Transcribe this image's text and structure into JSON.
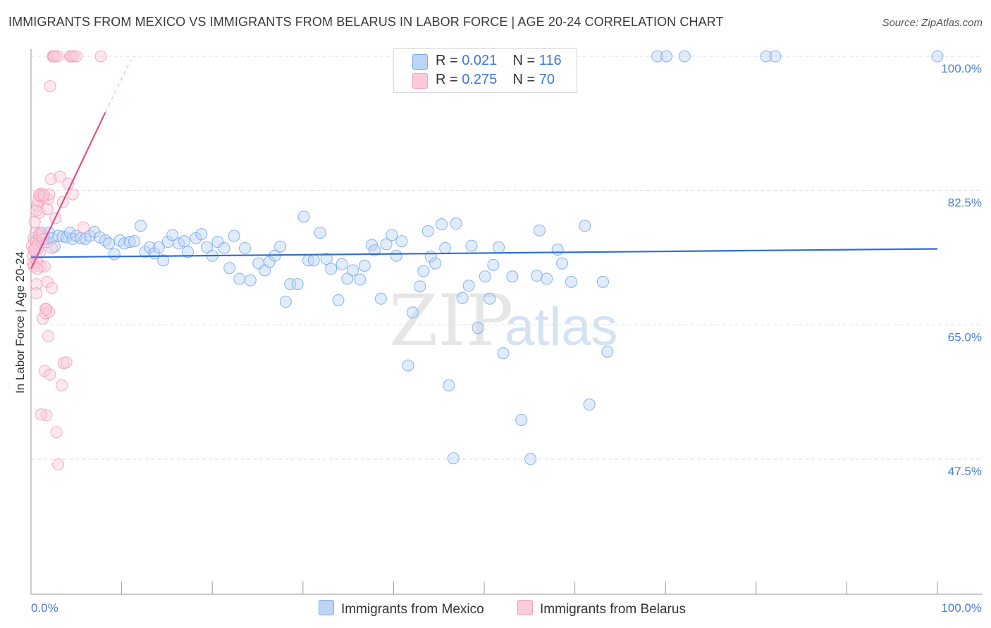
{
  "title": "IMMIGRANTS FROM MEXICO VS IMMIGRANTS FROM BELARUS IN LABOR FORCE | AGE 20-24 CORRELATION CHART",
  "source": "Source: ZipAtlas.com",
  "watermark": {
    "zip": "ZIP",
    "atlas": "atlas"
  },
  "legend": {
    "rows": [
      {
        "r_label": "R = ",
        "r_value": "0.021",
        "n_label": "N = ",
        "n_value": "116"
      },
      {
        "r_label": "R = ",
        "r_value": "0.275",
        "n_label": "N = ",
        "n_value": "70"
      }
    ]
  },
  "chart_data": {
    "type": "scatter",
    "title": "IMMIGRANTS FROM MEXICO VS IMMIGRANTS FROM BELARUS IN LABOR FORCE | AGE 20-24 CORRELATION CHART",
    "xlabel": "",
    "ylabel": "In Labor Force | Age 20-24",
    "xlim": [
      0,
      100
    ],
    "ylim": [
      30,
      101
    ],
    "x_tick_labels": [
      "0.0%",
      "100.0%"
    ],
    "y_ticks": [
      47.5,
      65.0,
      82.5,
      100.0
    ],
    "y_tick_labels": [
      "47.5%",
      "65.0%",
      "82.5%",
      "100.0%"
    ],
    "grid": true,
    "colors": {
      "mexico": "#7aaaf0",
      "mexico_line": "#2e6fd0",
      "belarus": "#f4a0bc",
      "belarus_line": "#e0508a"
    },
    "series": [
      {
        "name": "Immigrants from Mexico",
        "r": 0.021,
        "n": 116,
        "trend": {
          "x0": 0,
          "y0": 73.8,
          "x1": 100,
          "y1": 74.9
        },
        "points": [
          [
            0.5,
            76.0
          ],
          [
            0.8,
            75.0
          ],
          [
            1.0,
            77.0
          ],
          [
            1.2,
            76.5
          ],
          [
            1.5,
            76.2
          ],
          [
            1.8,
            75.8
          ],
          [
            2.0,
            77.0
          ],
          [
            2.3,
            76.3
          ],
          [
            2.6,
            75.2
          ],
          [
            3.0,
            76.6
          ],
          [
            3.5,
            76.5
          ],
          [
            3.9,
            76.4
          ],
          [
            4.3,
            77.0
          ],
          [
            4.6,
            76.2
          ],
          [
            5.0,
            76.6
          ],
          [
            5.5,
            76.3
          ],
          [
            6.0,
            76.2
          ],
          [
            6.5,
            76.6
          ],
          [
            7.0,
            77.1
          ],
          [
            7.6,
            76.4
          ],
          [
            8.2,
            76.0
          ],
          [
            8.6,
            75.6
          ],
          [
            9.2,
            74.2
          ],
          [
            9.8,
            76.0
          ],
          [
            10.3,
            75.6
          ],
          [
            10.9,
            75.8
          ],
          [
            11.4,
            75.9
          ],
          [
            12.1,
            77.9
          ],
          [
            12.6,
            74.5
          ],
          [
            13.1,
            75.1
          ],
          [
            13.6,
            74.3
          ],
          [
            14.1,
            75.1
          ],
          [
            14.6,
            73.4
          ],
          [
            15.1,
            75.8
          ],
          [
            15.6,
            76.7
          ],
          [
            16.3,
            75.6
          ],
          [
            16.9,
            75.9
          ],
          [
            17.3,
            74.5
          ],
          [
            18.2,
            76.3
          ],
          [
            18.8,
            76.8
          ],
          [
            19.4,
            75.1
          ],
          [
            20.0,
            74.0
          ],
          [
            20.6,
            75.8
          ],
          [
            21.3,
            75.0
          ],
          [
            21.9,
            72.4
          ],
          [
            22.4,
            76.6
          ],
          [
            23.0,
            71.0
          ],
          [
            23.6,
            75.0
          ],
          [
            24.2,
            70.8
          ],
          [
            25.1,
            73.0
          ],
          [
            25.8,
            72.1
          ],
          [
            26.3,
            73.2
          ],
          [
            26.9,
            74.0
          ],
          [
            27.5,
            75.2
          ],
          [
            28.1,
            68.0
          ],
          [
            28.6,
            70.3
          ],
          [
            29.4,
            70.3
          ],
          [
            30.1,
            79.1
          ],
          [
            30.6,
            73.4
          ],
          [
            31.2,
            73.4
          ],
          [
            31.9,
            77.0
          ],
          [
            32.6,
            73.6
          ],
          [
            33.1,
            72.3
          ],
          [
            33.9,
            68.2
          ],
          [
            34.3,
            72.9
          ],
          [
            34.9,
            71.0
          ],
          [
            35.5,
            72.1
          ],
          [
            36.3,
            70.9
          ],
          [
            36.8,
            72.7
          ],
          [
            37.6,
            75.4
          ],
          [
            37.9,
            74.7
          ],
          [
            38.6,
            68.4
          ],
          [
            39.2,
            75.5
          ],
          [
            39.8,
            76.7
          ],
          [
            40.3,
            74.0
          ],
          [
            40.9,
            75.9
          ],
          [
            41.6,
            59.7
          ],
          [
            42.1,
            66.6
          ],
          [
            42.9,
            70.0
          ],
          [
            43.3,
            72.0
          ],
          [
            43.8,
            77.2
          ],
          [
            44.1,
            73.9
          ],
          [
            44.6,
            73.0
          ],
          [
            45.3,
            78.1
          ],
          [
            45.7,
            75.0
          ],
          [
            46.1,
            57.1
          ],
          [
            46.6,
            47.6
          ],
          [
            46.9,
            78.2
          ],
          [
            47.6,
            68.5
          ],
          [
            48.3,
            70.1
          ],
          [
            48.6,
            75.3
          ],
          [
            49.3,
            64.6
          ],
          [
            50.1,
            71.3
          ],
          [
            50.6,
            68.4
          ],
          [
            51.0,
            72.8
          ],
          [
            51.6,
            75.1
          ],
          [
            52.1,
            61.3
          ],
          [
            53.1,
            71.3
          ],
          [
            54.1,
            52.6
          ],
          [
            55.1,
            47.5
          ],
          [
            55.8,
            71.4
          ],
          [
            56.1,
            77.3
          ],
          [
            56.9,
            71.0
          ],
          [
            58.1,
            74.8
          ],
          [
            58.6,
            73.0
          ],
          [
            59.6,
            70.6
          ],
          [
            61.1,
            77.9
          ],
          [
            61.6,
            54.6
          ],
          [
            63.1,
            70.6
          ],
          [
            63.6,
            61.5
          ],
          [
            69.1,
            100.0
          ],
          [
            70.1,
            100.0
          ],
          [
            72.1,
            100.0
          ],
          [
            81.1,
            100.0
          ],
          [
            82.1,
            100.0
          ],
          [
            100.0,
            100.0
          ]
        ]
      },
      {
        "name": "Immigrants from Belarus",
        "r": 0.275,
        "n": 70,
        "trend": {
          "x0": 0,
          "y0": 72.3,
          "x1": 8.2,
          "y1": 92.7,
          "dashed_to": {
            "x": 11.0,
            "y": 99.5
          }
        },
        "points": [
          [
            0.1,
            75.3
          ],
          [
            0.2,
            74.0
          ],
          [
            0.2,
            73.0
          ],
          [
            0.3,
            76.3
          ],
          [
            0.3,
            72.6
          ],
          [
            0.4,
            78.4
          ],
          [
            0.4,
            74.6
          ],
          [
            0.5,
            75.7
          ],
          [
            0.5,
            77.0
          ],
          [
            0.6,
            70.3
          ],
          [
            0.6,
            69.1
          ],
          [
            0.7,
            80.5
          ],
          [
            0.7,
            73.2
          ],
          [
            0.8,
            81.1
          ],
          [
            0.8,
            75.5
          ],
          [
            0.9,
            79.6
          ],
          [
            0.9,
            76.7
          ],
          [
            1.0,
            74.4
          ],
          [
            1.0,
            81.8
          ],
          [
            1.1,
            72.6
          ],
          [
            1.1,
            82.1
          ],
          [
            1.2,
            77.0
          ],
          [
            1.2,
            81.7
          ],
          [
            1.3,
            65.8
          ],
          [
            1.4,
            81.6
          ],
          [
            1.5,
            72.6
          ],
          [
            1.5,
            59.0
          ],
          [
            1.6,
            67.1
          ],
          [
            1.6,
            66.5
          ],
          [
            1.7,
            53.2
          ],
          [
            1.8,
            80.1
          ],
          [
            1.8,
            70.6
          ],
          [
            1.9,
            81.4
          ],
          [
            1.9,
            63.5
          ],
          [
            2.0,
            82.0
          ],
          [
            2.0,
            66.7
          ],
          [
            2.1,
            96.1
          ],
          [
            2.1,
            58.5
          ],
          [
            2.2,
            84.0
          ],
          [
            2.3,
            75.0
          ],
          [
            2.3,
            69.8
          ],
          [
            2.4,
            100.0
          ],
          [
            2.5,
            100.0
          ],
          [
            2.6,
            100.0
          ],
          [
            2.8,
            51.0
          ],
          [
            2.9,
            100.0
          ],
          [
            3.0,
            46.8
          ],
          [
            3.2,
            84.3
          ],
          [
            3.4,
            57.1
          ],
          [
            3.5,
            81.0
          ],
          [
            3.6,
            60.0
          ],
          [
            3.9,
            60.1
          ],
          [
            4.1,
            83.4
          ],
          [
            4.3,
            100.0
          ],
          [
            4.5,
            100.0
          ],
          [
            4.7,
            100.0
          ],
          [
            5.0,
            100.0
          ],
          [
            4.6,
            82.0
          ],
          [
            5.8,
            77.7
          ],
          [
            7.7,
            100.0
          ],
          [
            1.1,
            53.3
          ],
          [
            0.7,
            72.3
          ],
          [
            0.5,
            75.1
          ],
          [
            1.3,
            76.2
          ],
          [
            1.7,
            67.0
          ],
          [
            0.3,
            74.8
          ],
          [
            0.9,
            81.9
          ],
          [
            2.7,
            78.9
          ],
          [
            1.4,
            81.9
          ],
          [
            0.6,
            79.9
          ]
        ]
      }
    ]
  },
  "axes": {
    "y_title": "In Labor Force | Age 20-24",
    "x_min_label": "0.0%",
    "x_max_label": "100.0%"
  },
  "bottom_legend": {
    "mexico": "Immigrants from Mexico",
    "belarus": "Immigrants from Belarus"
  }
}
